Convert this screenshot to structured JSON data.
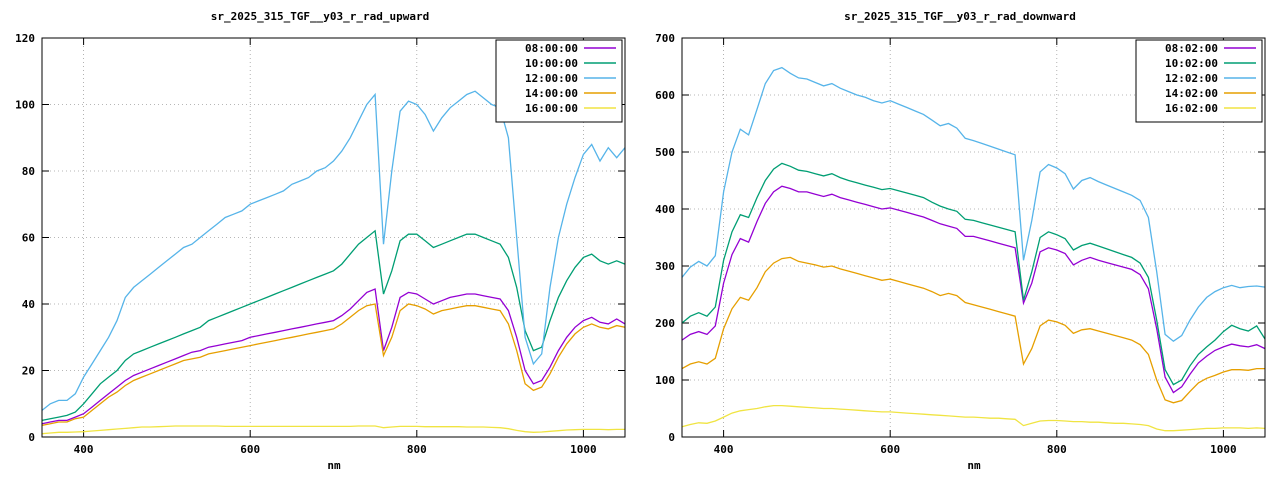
{
  "chart_data": [
    {
      "type": "line",
      "title": "sr_2025_315_TGF__y03_r_rad_upward",
      "xlabel": "nm",
      "xlim": [
        350,
        1050
      ],
      "ylim": [
        0,
        120
      ],
      "xticks": [
        400,
        600,
        800,
        1000
      ],
      "yticks": [
        0,
        20,
        40,
        60,
        80,
        100,
        120
      ],
      "grid": true,
      "legend_position": "top-right",
      "x": [
        350,
        360,
        370,
        380,
        390,
        400,
        410,
        420,
        430,
        440,
        450,
        460,
        470,
        480,
        490,
        500,
        510,
        520,
        530,
        540,
        550,
        560,
        570,
        580,
        590,
        600,
        610,
        620,
        630,
        640,
        650,
        660,
        670,
        680,
        690,
        700,
        710,
        720,
        730,
        740,
        750,
        760,
        770,
        780,
        790,
        800,
        810,
        820,
        830,
        840,
        850,
        860,
        870,
        880,
        890,
        900,
        910,
        920,
        930,
        940,
        950,
        960,
        970,
        980,
        990,
        1000,
        1010,
        1020,
        1030,
        1040,
        1050
      ],
      "series": [
        {
          "name": "08:00:00",
          "color": "#9400d3",
          "y": [
            4,
            4.5,
            5,
            5,
            6,
            7,
            9,
            11,
            13,
            15,
            17,
            18.5,
            19.5,
            20.5,
            21.5,
            22.5,
            23.5,
            24.5,
            25.5,
            26,
            27,
            27.5,
            28,
            28.5,
            29,
            30,
            30.5,
            31,
            31.5,
            32,
            32.5,
            33,
            33.5,
            34,
            34.5,
            35,
            36.5,
            38.5,
            41,
            43.5,
            44.5,
            26,
            33,
            42,
            43.5,
            43,
            41.5,
            40,
            41,
            42,
            42.5,
            43,
            43,
            42.5,
            42,
            41.5,
            38,
            30,
            20,
            16,
            17,
            21,
            26,
            30,
            33,
            35,
            36,
            34.5,
            34,
            35.5,
            34
          ]
        },
        {
          "name": "10:00:00",
          "color": "#009e73",
          "y": [
            5,
            5.5,
            6,
            6.5,
            7.5,
            10,
            13,
            16,
            18,
            20,
            23,
            25,
            26,
            27,
            28,
            29,
            30,
            31,
            32,
            33,
            35,
            36,
            37,
            38,
            39,
            40,
            41,
            42,
            43,
            44,
            45,
            46,
            47,
            48,
            49,
            50,
            52,
            55,
            58,
            60,
            62,
            43,
            50,
            59,
            61,
            61,
            59,
            57,
            58,
            59,
            60,
            61,
            61,
            60,
            59,
            58,
            54,
            45,
            32,
            26,
            27,
            35,
            42,
            47,
            51,
            54,
            55,
            53,
            52,
            53,
            52
          ]
        },
        {
          "name": "12:00:00",
          "color": "#56b4e9",
          "y": [
            8,
            10,
            11,
            11,
            13,
            18,
            22,
            26,
            30,
            35,
            42,
            45,
            47,
            49,
            51,
            53,
            55,
            57,
            58,
            60,
            62,
            64,
            66,
            67,
            68,
            70,
            71,
            72,
            73,
            74,
            76,
            77,
            78,
            80,
            81,
            83,
            86,
            90,
            95,
            100,
            103,
            58,
            80,
            98,
            101,
            100,
            97,
            92,
            96,
            99,
            101,
            103,
            104,
            102,
            100,
            99,
            90,
            60,
            30,
            22,
            25,
            45,
            60,
            70,
            78,
            85,
            88,
            83,
            87,
            84,
            87
          ]
        },
        {
          "name": "14:00:00",
          "color": "#e69f00",
          "y": [
            3.5,
            4,
            4.5,
            4.5,
            5.5,
            6,
            8,
            10,
            12,
            13.5,
            15.5,
            17,
            18,
            19,
            20,
            21,
            22,
            23,
            23.5,
            24,
            25,
            25.5,
            26,
            26.5,
            27,
            27.5,
            28,
            28.5,
            29,
            29.5,
            30,
            30.5,
            31,
            31.5,
            32,
            32.5,
            34,
            36,
            38,
            39.5,
            40,
            24.5,
            30,
            38,
            40,
            39.5,
            38.5,
            37,
            38,
            38.5,
            39,
            39.5,
            39.5,
            39,
            38.5,
            38,
            34,
            26,
            16,
            14,
            15,
            19,
            24,
            28,
            31,
            33,
            34,
            33,
            32.5,
            33.5,
            33
          ]
        },
        {
          "name": "16:00:00",
          "color": "#f0e442",
          "y": [
            1,
            1.2,
            1.4,
            1.4,
            1.5,
            1.6,
            1.8,
            2,
            2.2,
            2.4,
            2.6,
            2.8,
            3,
            3,
            3.1,
            3.2,
            3.3,
            3.3,
            3.3,
            3.3,
            3.3,
            3.3,
            3.2,
            3.2,
            3.2,
            3.2,
            3.2,
            3.2,
            3.2,
            3.2,
            3.2,
            3.2,
            3.2,
            3.2,
            3.2,
            3.2,
            3.2,
            3.2,
            3.3,
            3.3,
            3.3,
            2.8,
            3,
            3.2,
            3.2,
            3.2,
            3.1,
            3.1,
            3.1,
            3.1,
            3.1,
            3,
            3,
            3,
            2.9,
            2.8,
            2.5,
            2,
            1.6,
            1.4,
            1.5,
            1.7,
            1.9,
            2.1,
            2.2,
            2.3,
            2.3,
            2.3,
            2.2,
            2.3,
            2.3
          ]
        }
      ]
    },
    {
      "type": "line",
      "title": "sr_2025_315_TGF__y03_r_rad_downward",
      "xlabel": "nm",
      "xlim": [
        350,
        1050
      ],
      "ylim": [
        0,
        700
      ],
      "xticks": [
        400,
        600,
        800,
        1000
      ],
      "yticks": [
        0,
        100,
        200,
        300,
        400,
        500,
        600,
        700
      ],
      "grid": true,
      "legend_position": "top-right",
      "x": [
        350,
        360,
        370,
        380,
        390,
        400,
        410,
        420,
        430,
        440,
        450,
        460,
        470,
        480,
        490,
        500,
        510,
        520,
        530,
        540,
        550,
        560,
        570,
        580,
        590,
        600,
        610,
        620,
        630,
        640,
        650,
        660,
        670,
        680,
        690,
        700,
        710,
        720,
        730,
        740,
        750,
        760,
        770,
        780,
        790,
        800,
        810,
        820,
        830,
        840,
        850,
        860,
        870,
        880,
        890,
        900,
        910,
        920,
        930,
        940,
        950,
        960,
        970,
        980,
        990,
        1000,
        1010,
        1020,
        1030,
        1040,
        1050
      ],
      "series": [
        {
          "name": "08:02:00",
          "color": "#9400d3",
          "y": [
            170,
            180,
            185,
            180,
            195,
            270,
            320,
            348,
            342,
            378,
            410,
            430,
            440,
            436,
            430,
            430,
            426,
            422,
            426,
            420,
            416,
            412,
            408,
            404,
            400,
            402,
            398,
            394,
            390,
            386,
            380,
            374,
            370,
            366,
            352,
            352,
            348,
            344,
            340,
            336,
            332,
            235,
            270,
            325,
            332,
            328,
            322,
            302,
            310,
            315,
            310,
            306,
            302,
            298,
            294,
            285,
            260,
            190,
            105,
            78,
            88,
            110,
            130,
            142,
            152,
            158,
            163,
            160,
            158,
            162,
            155
          ]
        },
        {
          "name": "10:02:00",
          "color": "#009e73",
          "y": [
            200,
            212,
            218,
            212,
            228,
            310,
            360,
            390,
            385,
            420,
            450,
            470,
            480,
            475,
            468,
            466,
            462,
            458,
            462,
            455,
            450,
            446,
            442,
            438,
            434,
            436,
            432,
            428,
            424,
            420,
            412,
            405,
            400,
            396,
            382,
            380,
            376,
            372,
            368,
            364,
            360,
            240,
            290,
            350,
            360,
            355,
            348,
            328,
            336,
            340,
            335,
            330,
            325,
            320,
            315,
            305,
            280,
            205,
            118,
            92,
            100,
            125,
            145,
            158,
            170,
            185,
            196,
            190,
            186,
            195,
            172
          ]
        },
        {
          "name": "12:02:00",
          "color": "#56b4e9",
          "y": [
            280,
            298,
            308,
            300,
            318,
            430,
            500,
            540,
            530,
            575,
            620,
            643,
            648,
            638,
            630,
            628,
            622,
            616,
            620,
            612,
            606,
            600,
            596,
            590,
            586,
            590,
            584,
            578,
            572,
            566,
            556,
            546,
            550,
            542,
            524,
            520,
            515,
            510,
            505,
            500,
            495,
            310,
            380,
            465,
            478,
            472,
            462,
            435,
            450,
            455,
            448,
            442,
            436,
            430,
            424,
            415,
            385,
            290,
            180,
            168,
            178,
            205,
            228,
            245,
            255,
            262,
            266,
            262,
            264,
            265,
            263
          ]
        },
        {
          "name": "14:02:00",
          "color": "#e69f00",
          "y": [
            120,
            128,
            132,
            128,
            138,
            190,
            225,
            245,
            240,
            262,
            290,
            305,
            313,
            315,
            308,
            305,
            302,
            298,
            300,
            295,
            291,
            287,
            283,
            279,
            275,
            277,
            273,
            269,
            265,
            261,
            255,
            248,
            252,
            248,
            236,
            232,
            228,
            224,
            220,
            216,
            212,
            128,
            155,
            195,
            205,
            202,
            196,
            182,
            188,
            190,
            186,
            182,
            178,
            174,
            170,
            162,
            145,
            100,
            65,
            60,
            64,
            80,
            95,
            103,
            108,
            114,
            118,
            118,
            117,
            120,
            120
          ]
        },
        {
          "name": "16:02:00",
          "color": "#f0e442",
          "y": [
            18,
            22,
            25,
            24,
            28,
            35,
            42,
            46,
            48,
            50,
            53,
            55,
            55,
            54,
            53,
            52,
            51,
            50,
            50,
            49,
            48,
            47,
            46,
            45,
            44,
            44,
            43,
            42,
            41,
            40,
            39,
            38,
            37,
            36,
            35,
            35,
            34,
            33,
            33,
            32,
            31,
            20,
            24,
            28,
            29,
            29,
            28,
            27,
            27,
            26,
            26,
            25,
            24,
            24,
            23,
            22,
            20,
            14,
            11,
            11,
            12,
            13,
            14,
            15,
            15,
            16,
            16,
            16,
            15,
            16,
            15
          ]
        }
      ]
    }
  ]
}
